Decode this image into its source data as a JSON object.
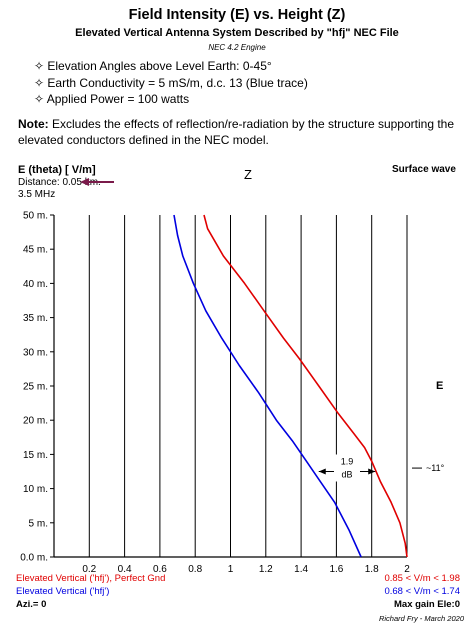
{
  "header": {
    "title": "Field Intensity (E) vs. Height (Z)",
    "subtitle": "Elevated Vertical Antenna System Described by \"hfj\" NEC File",
    "engine": "NEC 4.2 Engine",
    "bullets": [
      "✧ Elevation Angles above Level Earth: 0-45°",
      "✧ Earth Conductivity = 5 mS/m, d.c. 13 (Blue trace)",
      "✧ Applied Power = 100 watts"
    ],
    "note_label": "Note:",
    "note_text": "Excludes the effects of reflection/re-radiation by the structure supporting the elevated conductors defined in the NEC model."
  },
  "labels": {
    "ylabel": "E (theta) [ V/m]",
    "distance": "Distance: 0.05 km.",
    "frequency": "3.5 MHz",
    "z_axis": "Z",
    "surface_wave": "Surface wave",
    "e_axis": "E"
  },
  "legend": {
    "red_left": "Elevated Vertical ('hfj'), Perfect Gnd",
    "red_right": "0.85 < V/m < 1.98",
    "blue_left": "Elevated Vertical ('hfj')",
    "blue_right": "0.68 < V/m < 1.74",
    "azi": "Azi.= 0",
    "max_gain": "Max gain Ele:0"
  },
  "author": "Richard Fry - March 2020",
  "colors": {
    "red_trace": "#e00000",
    "blue_trace": "#0000e0",
    "arrow": "#7a1a4a",
    "grid": "#000000"
  },
  "chart_data": {
    "type": "line",
    "orientation": "x = field intensity (V/m), y = height (m)",
    "xlim": [
      0,
      2
    ],
    "ylim": [
      0,
      50
    ],
    "xticks": [
      "0.2",
      "0.4",
      "0.6",
      "0.8",
      "1",
      "1.2",
      "1.4",
      "1.6",
      "1.8",
      "2"
    ],
    "yticks": [
      "0.0 m.",
      "5 m.",
      "10 m.",
      "15 m.",
      "20 m.",
      "25 m.",
      "30 m.",
      "35 m.",
      "40 m.",
      "45 m.",
      "50 m."
    ],
    "grid": true,
    "series": [
      {
        "name": "Elevated Vertical ('hfj'), Perfect Gnd",
        "color": "#e00000",
        "points": [
          [
            2.0,
            0
          ],
          [
            1.99,
            2
          ],
          [
            1.96,
            5
          ],
          [
            1.91,
            8
          ],
          [
            1.85,
            11
          ],
          [
            1.8,
            14
          ],
          [
            1.76,
            16
          ],
          [
            1.7,
            18
          ],
          [
            1.61,
            21
          ],
          [
            1.5,
            25
          ],
          [
            1.39,
            29
          ],
          [
            1.3,
            32
          ],
          [
            1.19,
            36
          ],
          [
            1.08,
            40
          ],
          [
            0.96,
            44
          ],
          [
            0.87,
            48
          ],
          [
            0.85,
            50
          ]
        ]
      },
      {
        "name": "Elevated Vertical ('hfj')",
        "color": "#0000e0",
        "points": [
          [
            1.74,
            0
          ],
          [
            1.67,
            4
          ],
          [
            1.59,
            8
          ],
          [
            1.51,
            11
          ],
          [
            1.43,
            14
          ],
          [
            1.35,
            17
          ],
          [
            1.26,
            20
          ],
          [
            1.16,
            24
          ],
          [
            1.05,
            28
          ],
          [
            0.95,
            32
          ],
          [
            0.86,
            36
          ],
          [
            0.79,
            40
          ],
          [
            0.73,
            44
          ],
          [
            0.7,
            47
          ],
          [
            0.68,
            50
          ]
        ]
      }
    ],
    "annotations": {
      "difference_value": "1.9",
      "difference_unit": "dB",
      "difference_height_m": 12.5,
      "difference_x_from": 1.5,
      "difference_x_to": 1.82,
      "angle_label": "~11°"
    }
  }
}
